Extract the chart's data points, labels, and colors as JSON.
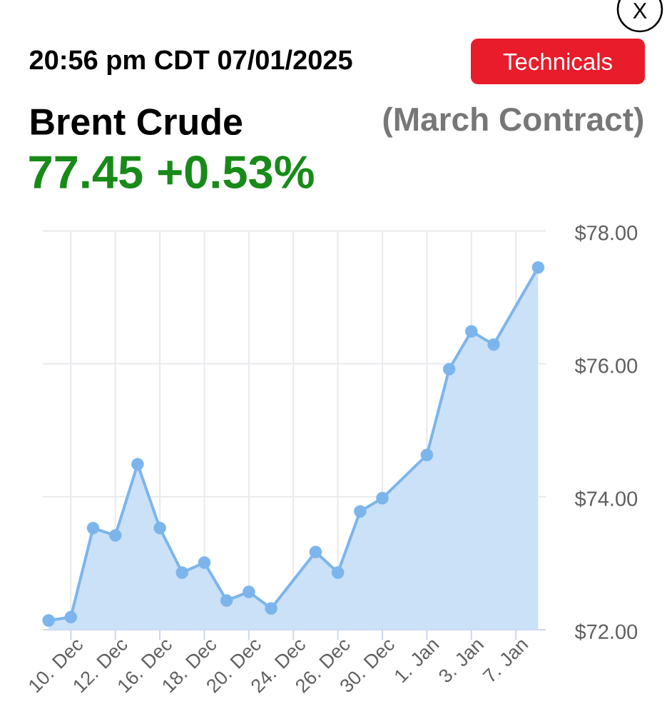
{
  "chart_data": {
    "type": "area",
    "title": "Brent Crude",
    "subtitle": "(March Contract)",
    "annotations": [
      "20:56 pm CDT 07/01/2025",
      "77.45 +0.53%",
      "Technicals",
      "X"
    ],
    "categories": [
      null,
      "10. Dec",
      null,
      "12. Dec",
      null,
      "16. Dec",
      null,
      "18. Dec",
      null,
      "20. Dec",
      null,
      "24. Dec",
      null,
      "26. Dec",
      null,
      "30. Dec",
      null,
      "1. Jan",
      null,
      "3. Jan",
      null,
      "7. Jan",
      null
    ],
    "values": [
      72.14,
      72.19,
      73.53,
      73.42,
      74.49,
      73.53,
      72.86,
      73.01,
      72.44,
      72.57,
      72.32,
      null,
      73.17,
      72.86,
      73.78,
      73.98,
      null,
      74.63,
      75.92,
      76.49,
      76.29,
      null,
      77.45
    ],
    "color": "#7cb5ec",
    "ylim": [
      72,
      78
    ],
    "yticks": [
      {
        "value": 72,
        "label": "$72.00"
      },
      {
        "value": 74,
        "label": "$74.00"
      },
      {
        "value": 76,
        "label": "$76.00"
      },
      {
        "value": 78,
        "label": "$78.00"
      }
    ],
    "grid": true,
    "marker": "circle"
  }
}
